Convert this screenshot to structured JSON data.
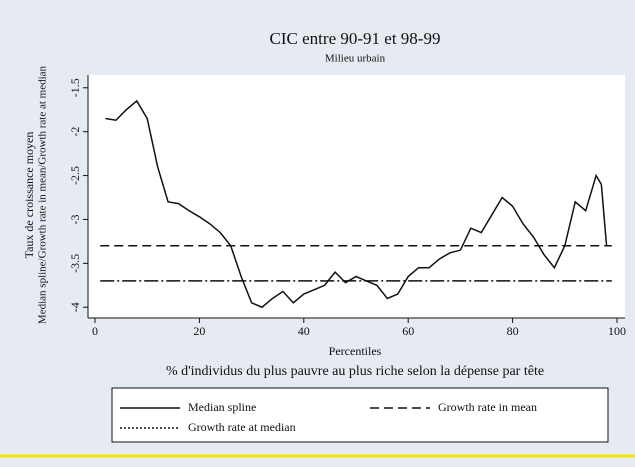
{
  "chart_data": {
    "type": "line",
    "title": "CIC entre 90-91 et 98-99",
    "subtitle": "Milieu urbain",
    "y_label": [
      "Taux de croissance moyen",
      "Median spline/Growth rate in mean/Growth rate at median"
    ],
    "x_label": "Percentiles",
    "note": "% d'individus du plus pauvre au plus riche selon la dépense par tête",
    "xlim": [
      0,
      100
    ],
    "xticks": [
      0,
      20,
      40,
      60,
      80,
      100
    ],
    "ylim": [
      -4.1,
      -1.4
    ],
    "yticks": [
      -1.5,
      -2,
      -2.5,
      -3,
      -3.5,
      -4
    ],
    "series": [
      {
        "name": "Median spline",
        "color": "#111111",
        "style": "solid",
        "x": [
          2,
          4,
          6,
          8,
          10,
          12,
          14,
          16,
          18,
          20,
          22,
          24,
          26,
          28,
          30,
          32,
          34,
          36,
          38,
          40,
          42,
          44,
          46,
          48,
          50,
          52,
          54,
          56,
          58,
          60,
          62,
          64,
          66,
          68,
          70,
          72,
          74,
          76,
          78,
          80,
          82,
          84,
          86,
          88,
          90,
          92,
          94,
          96,
          97,
          98
        ],
        "values": [
          -1.85,
          -1.87,
          -1.75,
          -1.65,
          -1.85,
          -2.4,
          -2.8,
          -2.82,
          -2.9,
          -2.97,
          -3.05,
          -3.15,
          -3.3,
          -3.65,
          -3.95,
          -4.0,
          -3.9,
          -3.82,
          -3.95,
          -3.85,
          -3.8,
          -3.75,
          -3.6,
          -3.72,
          -3.65,
          -3.7,
          -3.75,
          -3.9,
          -3.85,
          -3.65,
          -3.55,
          -3.55,
          -3.45,
          -3.38,
          -3.35,
          -3.1,
          -3.15,
          -2.95,
          -2.75,
          -2.85,
          -3.05,
          -3.2,
          -3.4,
          -3.55,
          -3.3,
          -2.8,
          -2.9,
          -2.5,
          -2.6,
          -3.3
        ]
      },
      {
        "name": "Growth rate in mean",
        "color": "#111111",
        "style": "dashed",
        "x": [
          1,
          99
        ],
        "values": [
          -3.3,
          -3.3
        ]
      },
      {
        "name": "Growth rate at median",
        "color": "#111111",
        "style": "dotted",
        "x": [
          1,
          99
        ],
        "values": [
          -3.7,
          -3.7
        ]
      }
    ]
  }
}
